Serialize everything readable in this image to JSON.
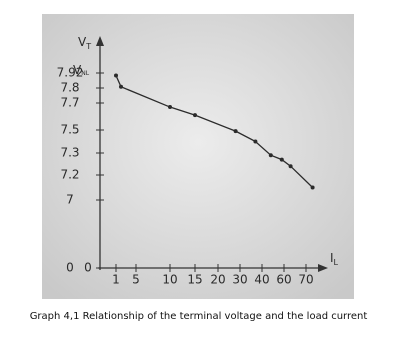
{
  "chart_data": {
    "type": "line",
    "y_label": {
      "text": "V",
      "sub": "T"
    },
    "x_label": {
      "text": "I",
      "sub": "L"
    },
    "annotation": {
      "text": "V",
      "sub": "NL"
    },
    "caption": "Graph 4,1 Relationship of the terminal voltage and the load current",
    "x": [
      1,
      2,
      10,
      15,
      28,
      37,
      48,
      58,
      63,
      73
    ],
    "series": [
      {
        "color": "#2b2b2b",
        "values": [
          7.9,
          7.81,
          7.67,
          7.61,
          7.49,
          7.4,
          7.29,
          7.27,
          7.24,
          7.1
        ]
      }
    ],
    "xlim": [
      0,
      75
    ],
    "ylim": [
      0,
      7.92
    ],
    "xticks": [
      1,
      5,
      10,
      15,
      20,
      30,
      40,
      60,
      70
    ],
    "yticks": [
      0,
      7,
      7.2,
      7.3,
      7.5,
      7.7,
      7.8,
      {
        "value": 7.92,
        "label": "7.92"
      }
    ]
  }
}
